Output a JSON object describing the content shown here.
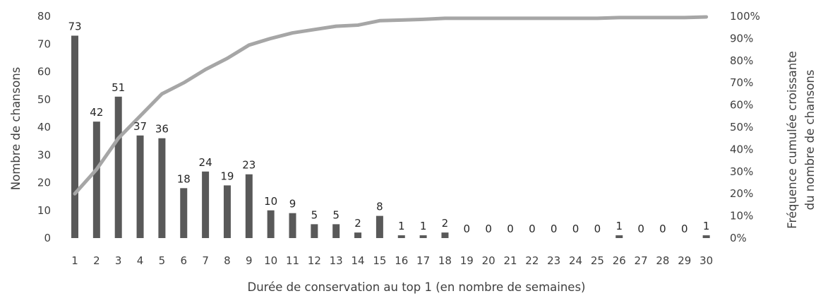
{
  "chart_data": {
    "type": "bar+line",
    "x": [
      1,
      2,
      3,
      4,
      5,
      6,
      7,
      8,
      9,
      10,
      11,
      12,
      13,
      14,
      15,
      16,
      17,
      18,
      19,
      20,
      21,
      22,
      23,
      24,
      25,
      26,
      27,
      28,
      29,
      30
    ],
    "series": [
      {
        "type": "bar",
        "axis": "left",
        "color": "#595959",
        "values": [
          73,
          42,
          51,
          37,
          36,
          18,
          24,
          19,
          23,
          10,
          9,
          5,
          5,
          2,
          8,
          1,
          1,
          2,
          0,
          0,
          0,
          0,
          0,
          0,
          0,
          1,
          0,
          0,
          0,
          1
        ]
      },
      {
        "type": "line",
        "axis": "right",
        "color": "#a6a6a6",
        "values": [
          0.2,
          0.31,
          0.45,
          0.55,
          0.65,
          0.7,
          0.76,
          0.81,
          0.87,
          0.9,
          0.925,
          0.94,
          0.955,
          0.96,
          0.98,
          0.983,
          0.986,
          0.991,
          0.991,
          0.991,
          0.991,
          0.991,
          0.991,
          0.991,
          0.991,
          0.994,
          0.994,
          0.994,
          0.994,
          0.997
        ]
      }
    ],
    "xlabel": "Durée de conservation au top 1 (en nombre de semaines)",
    "ylabel": "Nombre de chansons",
    "y2label_line1": "Fréquence cumulée croissante",
    "y2label_line2": "du nombre de chansons",
    "ylim": [
      0,
      80
    ],
    "yticks": [
      "0",
      "10",
      "20",
      "30",
      "40",
      "50",
      "60",
      "70",
      "80"
    ],
    "y2lim": [
      0,
      1
    ],
    "y2ticks": [
      "0%",
      "10%",
      "20%",
      "30%",
      "40%",
      "50%",
      "60%",
      "70%",
      "80%",
      "90%",
      "100%"
    ],
    "grid": false,
    "legend": "none"
  }
}
